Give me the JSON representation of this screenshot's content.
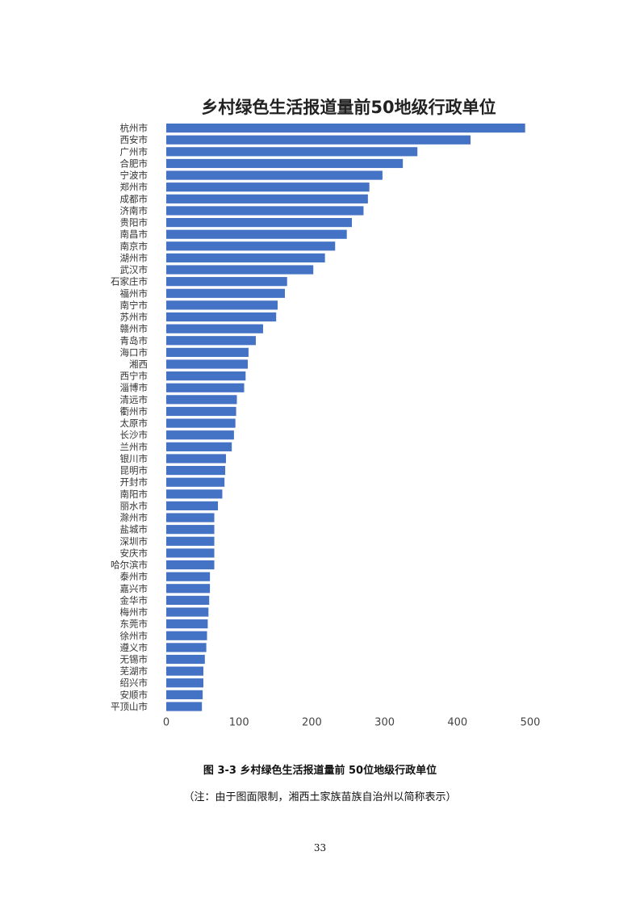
{
  "chart_data": {
    "type": "bar",
    "orientation": "horizontal",
    "title": "乡村绿色生活报道量前50地级行政单位",
    "xlim": [
      0,
      500
    ],
    "xticks": [
      0,
      100,
      200,
      300,
      400,
      500
    ],
    "grid": false,
    "color": "#4472c4",
    "categories": [
      "杭州市",
      "西安市",
      "广州市",
      "合肥市",
      "宁波市",
      "郑州市",
      "成都市",
      "济南市",
      "贵阳市",
      "南昌市",
      "南京市",
      "湖州市",
      "武汉市",
      "石家庄市",
      "福州市",
      "南宁市",
      "苏州市",
      "赣州市",
      "青岛市",
      "海口市",
      "湘西",
      "西宁市",
      "淄博市",
      "清远市",
      "衢州市",
      "太原市",
      "长沙市",
      "兰州市",
      "银川市",
      "昆明市",
      "开封市",
      "南阳市",
      "丽水市",
      "滁州市",
      "盐城市",
      "深圳市",
      "安庆市",
      "哈尔滨市",
      "泰州市",
      "嘉兴市",
      "金华市",
      "梅州市",
      "东莞市",
      "徐州市",
      "遵义市",
      "无锡市",
      "芜湖市",
      "绍兴市",
      "安顺市",
      "平顶山市"
    ],
    "values": [
      493,
      418,
      345,
      325,
      297,
      279,
      277,
      271,
      255,
      248,
      232,
      218,
      202,
      166,
      163,
      153,
      151,
      133,
      123,
      113,
      112,
      109,
      107,
      97,
      96,
      95,
      93,
      90,
      82,
      81,
      80,
      77,
      71,
      66,
      66,
      66,
      66,
      66,
      60,
      60,
      59,
      58,
      57,
      56,
      55,
      53,
      51,
      51,
      50,
      49
    ]
  },
  "caption": {
    "figure": "图 3-3 乡村绿色生活报道量前 50位地级行政单位",
    "note": "（注：由于图面限制，湘西土家族苗族自治州以简称表示）"
  },
  "page_number": "33"
}
